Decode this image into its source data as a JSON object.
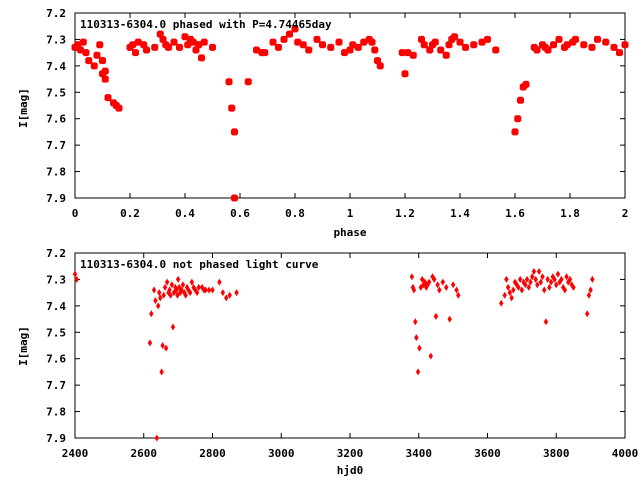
{
  "chart_data": [
    {
      "type": "scatter",
      "title": "110313-6304.0 phased with P=4.74465day",
      "xlabel": "phase",
      "ylabel": "I[mag]",
      "xlim": [
        0,
        2
      ],
      "ylim": [
        7.9,
        7.2
      ],
      "y_inverted": true,
      "xticks": [
        0,
        0.2,
        0.4,
        0.6,
        0.8,
        1,
        1.2,
        1.4,
        1.6,
        1.8,
        2
      ],
      "xtick_labels": [
        "0",
        "0.2",
        "0.4",
        "0.6",
        "0.8",
        "1",
        "1.2",
        "1.4",
        "1.6",
        "1.8",
        "2"
      ],
      "yticks": [
        7.2,
        7.3,
        7.4,
        7.5,
        7.6,
        7.7,
        7.8,
        7.9
      ],
      "ytick_labels": [
        "7.2",
        "7.3",
        "7.4",
        "7.5",
        "7.6",
        "7.7",
        "7.8",
        "7.9"
      ],
      "grid": false,
      "marker_color": "#ff0000",
      "series": [
        {
          "x": [
            0.0,
            0.01,
            0.02,
            0.03,
            0.04,
            0.05,
            0.07,
            0.08,
            0.09,
            0.1,
            0.1,
            0.11,
            0.11,
            0.12,
            0.14,
            0.15,
            0.16,
            0.2,
            0.21,
            0.22,
            0.23,
            0.25,
            0.26,
            0.29,
            0.31,
            0.32,
            0.33,
            0.34,
            0.36,
            0.38,
            0.4,
            0.41,
            0.42,
            0.43,
            0.44,
            0.45,
            0.46,
            0.47,
            0.5,
            0.56,
            0.57,
            0.58,
            0.58,
            0.63,
            0.66,
            0.68,
            0.69,
            0.72,
            0.74,
            0.76,
            0.78,
            0.8,
            0.81,
            0.83,
            0.85,
            0.88,
            0.9,
            0.93,
            0.96,
            0.98,
            1.0,
            1.01,
            1.03,
            1.05,
            1.07,
            1.08,
            1.09,
            1.1,
            1.11,
            1.19,
            1.2,
            1.21,
            1.23,
            1.26,
            1.27,
            1.29,
            1.3,
            1.31,
            1.33,
            1.35,
            1.36,
            1.37,
            1.38,
            1.4,
            1.42,
            1.45,
            1.48,
            1.5,
            1.53,
            1.6,
            1.61,
            1.62,
            1.63,
            1.64,
            1.67,
            1.68,
            1.7,
            1.71,
            1.72,
            1.74,
            1.76,
            1.78,
            1.79,
            1.81,
            1.82,
            1.85,
            1.88,
            1.9,
            1.93,
            1.96,
            1.98,
            2.0
          ],
          "y": [
            7.33,
            7.32,
            7.34,
            7.31,
            7.35,
            7.38,
            7.4,
            7.36,
            7.32,
            7.38,
            7.43,
            7.42,
            7.45,
            7.52,
            7.54,
            7.55,
            7.56,
            7.33,
            7.32,
            7.35,
            7.31,
            7.32,
            7.34,
            7.33,
            7.28,
            7.3,
            7.32,
            7.33,
            7.31,
            7.33,
            7.29,
            7.32,
            7.3,
            7.31,
            7.34,
            7.32,
            7.37,
            7.31,
            7.33,
            7.46,
            7.56,
            7.9,
            7.65,
            7.46,
            7.34,
            7.35,
            7.35,
            7.31,
            7.33,
            7.3,
            7.28,
            7.26,
            7.31,
            7.32,
            7.34,
            7.3,
            7.32,
            7.33,
            7.31,
            7.35,
            7.34,
            7.32,
            7.33,
            7.31,
            7.3,
            7.31,
            7.34,
            7.38,
            7.4,
            7.35,
            7.43,
            7.35,
            7.36,
            7.3,
            7.32,
            7.34,
            7.32,
            7.31,
            7.34,
            7.36,
            7.32,
            7.3,
            7.29,
            7.31,
            7.33,
            7.32,
            7.31,
            7.3,
            7.34,
            7.65,
            7.6,
            7.53,
            7.48,
            7.47,
            7.33,
            7.34,
            7.32,
            7.33,
            7.34,
            7.32,
            7.3,
            7.33,
            7.32,
            7.31,
            7.3,
            7.32,
            7.33,
            7.3,
            7.31,
            7.33,
            7.35,
            7.32
          ]
        }
      ]
    },
    {
      "type": "scatter",
      "title": "110313-6304.0 not phased light curve",
      "xlabel": "hjd0",
      "ylabel": "I[mag]",
      "xlim": [
        2400,
        4000
      ],
      "ylim": [
        7.9,
        7.2
      ],
      "y_inverted": true,
      "xticks": [
        2400,
        2600,
        2800,
        3000,
        3200,
        3400,
        3600,
        3800,
        4000
      ],
      "xtick_labels": [
        "2400",
        "2600",
        "2800",
        "3000",
        "3200",
        "3400",
        "3600",
        "3800",
        "4000"
      ],
      "yticks": [
        7.2,
        7.3,
        7.4,
        7.5,
        7.6,
        7.7,
        7.8,
        7.9
      ],
      "ytick_labels": [
        "7.2",
        "7.3",
        "7.4",
        "7.5",
        "7.6",
        "7.7",
        "7.8",
        "7.9"
      ],
      "grid": false,
      "marker_color": "#ff0000",
      "series": [
        {
          "x": [
            2400,
            2405,
            2618,
            2622,
            2630,
            2634,
            2638,
            2642,
            2645,
            2648,
            2652,
            2655,
            2658,
            2662,
            2665,
            2668,
            2672,
            2675,
            2678,
            2682,
            2685,
            2688,
            2692,
            2695,
            2698,
            2700,
            2703,
            2706,
            2710,
            2714,
            2718,
            2722,
            2726,
            2730,
            2735,
            2740,
            2745,
            2750,
            2755,
            2760,
            2770,
            2775,
            2780,
            2790,
            2800,
            2820,
            2830,
            2840,
            2850,
            2870,
            3380,
            3383,
            3386,
            3390,
            3393,
            3398,
            3402,
            3406,
            3410,
            3414,
            3418,
            3422,
            3426,
            3430,
            3435,
            3440,
            3445,
            3450,
            3455,
            3460,
            3470,
            3480,
            3490,
            3500,
            3510,
            3515,
            3640,
            3650,
            3655,
            3660,
            3665,
            3670,
            3675,
            3680,
            3685,
            3690,
            3695,
            3700,
            3705,
            3710,
            3715,
            3720,
            3725,
            3730,
            3735,
            3740,
            3745,
            3750,
            3755,
            3760,
            3765,
            3770,
            3775,
            3780,
            3785,
            3790,
            3795,
            3800,
            3805,
            3810,
            3815,
            3820,
            3825,
            3830,
            3835,
            3840,
            3845,
            3850,
            3890,
            3895,
            3900,
            3905
          ],
          "y": [
            7.28,
            7.3,
            7.54,
            7.43,
            7.34,
            7.38,
            7.9,
            7.4,
            7.35,
            7.37,
            7.65,
            7.55,
            7.36,
            7.33,
            7.56,
            7.31,
            7.35,
            7.34,
            7.36,
            7.32,
            7.48,
            7.35,
            7.33,
            7.34,
            7.36,
            7.3,
            7.33,
            7.35,
            7.34,
            7.32,
            7.35,
            7.36,
            7.33,
            7.34,
            7.35,
            7.31,
            7.33,
            7.34,
            7.35,
            7.33,
            7.33,
            7.34,
            7.34,
            7.34,
            7.34,
            7.31,
            7.35,
            7.37,
            7.36,
            7.35,
            7.29,
            7.33,
            7.34,
            7.46,
            7.52,
            7.65,
            7.56,
            7.33,
            7.3,
            7.32,
            7.31,
            7.33,
            7.32,
            7.31,
            7.59,
            7.29,
            7.3,
            7.44,
            7.32,
            7.34,
            7.31,
            7.33,
            7.45,
            7.32,
            7.34,
            7.36,
            7.39,
            7.36,
            7.3,
            7.33,
            7.35,
            7.37,
            7.34,
            7.31,
            7.32,
            7.33,
            7.3,
            7.34,
            7.31,
            7.32,
            7.3,
            7.33,
            7.31,
            7.29,
            7.27,
            7.3,
            7.32,
            7.27,
            7.31,
            7.29,
            7.34,
            7.46,
            7.3,
            7.33,
            7.31,
            7.29,
            7.3,
            7.32,
            7.28,
            7.31,
            7.3,
            7.33,
            7.34,
            7.29,
            7.31,
            7.3,
            7.32,
            7.33,
            7.43,
            7.36,
            7.34,
            7.3
          ]
        }
      ]
    }
  ]
}
